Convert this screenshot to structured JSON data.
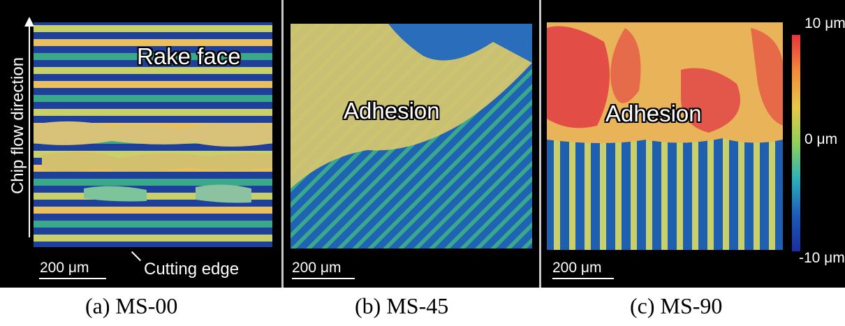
{
  "panels": [
    {
      "overlay": "Rake face",
      "scale_bar": "200 μm",
      "axis_label": "Chip flow direction",
      "edge_label": "Cutting edge",
      "caption": "(a) MS-00"
    },
    {
      "overlay": "Adhesion",
      "scale_bar": "200 μm",
      "caption": "(b) MS-45"
    },
    {
      "overlay": "Adhesion",
      "scale_bar": "200 μm",
      "caption": "(c) MS-90"
    }
  ],
  "colorbar": {
    "top": "10 μm",
    "middle": "0 μm",
    "bottom": "-10 μm",
    "colors": [
      "#e8323c",
      "#f28a3a",
      "#e8c84a",
      "#8ed05a",
      "#2bb0b8",
      "#1e5ab8",
      "#1a2ea0"
    ]
  },
  "surface_colors": {
    "high": "#e35a4a",
    "mid_high": "#e8c060",
    "mid": "#c9cf6a",
    "low_mid": "#3aa88a",
    "low": "#1e5fb0",
    "deep": "#1a2d8a"
  }
}
